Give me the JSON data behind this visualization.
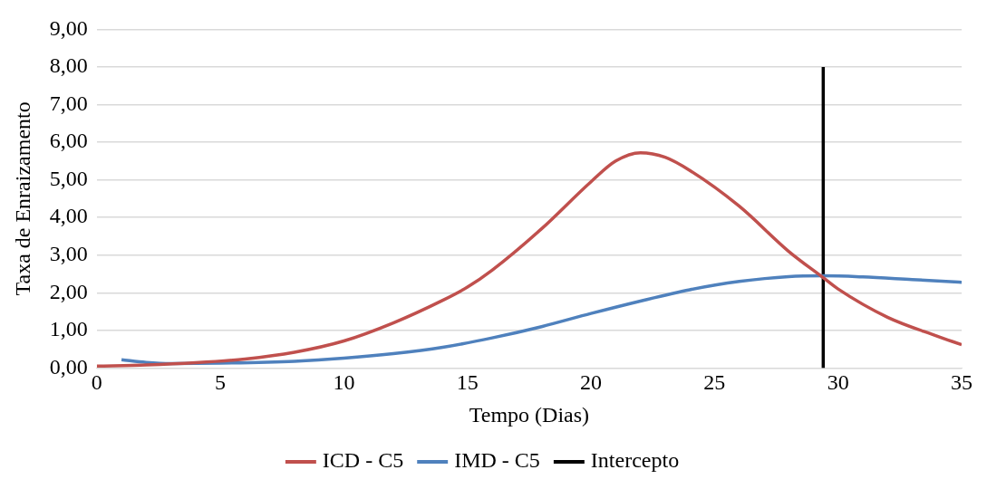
{
  "chart_data": {
    "type": "line",
    "xlabel": "Tempo (Dias)",
    "ylabel": "Taxa de Enraizamento",
    "xlim": [
      0,
      35
    ],
    "xticks": [
      0,
      5,
      10,
      15,
      20,
      25,
      30,
      35
    ],
    "ylim": [
      0,
      9
    ],
    "yticks": [
      {
        "value": 0,
        "label": "0,00"
      },
      {
        "value": 1,
        "label": "1,00"
      },
      {
        "value": 2,
        "label": "2,00"
      },
      {
        "value": 3,
        "label": "3,00"
      },
      {
        "value": 4,
        "label": "4,00"
      },
      {
        "value": 5,
        "label": "5,00"
      },
      {
        "value": 6,
        "label": "6,00"
      },
      {
        "value": 7,
        "label": "7,00"
      },
      {
        "value": 8,
        "label": "8,00"
      },
      {
        "value": 9,
        "label": "9,00"
      }
    ],
    "grid": "y",
    "legend": "bottom",
    "marker": "none",
    "series": [
      {
        "name": "ICD - C5",
        "color": "#c0504d",
        "x": [
          0,
          2,
          4,
          6,
          8,
          10,
          12,
          14,
          15,
          16,
          18,
          20,
          21,
          22,
          23,
          24,
          26,
          28,
          29.4,
          30,
          32,
          34,
          35
        ],
        "values": [
          0.05,
          0.08,
          0.14,
          0.24,
          0.42,
          0.72,
          1.2,
          1.8,
          2.15,
          2.6,
          3.7,
          4.95,
          5.5,
          5.72,
          5.6,
          5.25,
          4.3,
          3.1,
          2.4,
          2.1,
          1.35,
          0.85,
          0.62
        ]
      },
      {
        "name": "IMD - C5",
        "color": "#4f81bd",
        "x": [
          1,
          2,
          3,
          5,
          8,
          10,
          12,
          14,
          16,
          18,
          20,
          22,
          24,
          26,
          28,
          29.4,
          31,
          33,
          35
        ],
        "values": [
          0.22,
          0.15,
          0.12,
          0.13,
          0.18,
          0.26,
          0.38,
          0.55,
          0.8,
          1.1,
          1.45,
          1.78,
          2.08,
          2.3,
          2.43,
          2.45,
          2.42,
          2.35,
          2.28
        ]
      },
      {
        "name": "Intercepto",
        "color": "#000000",
        "x": [
          29.4,
          29.4
        ],
        "values": [
          0,
          8
        ]
      }
    ]
  }
}
